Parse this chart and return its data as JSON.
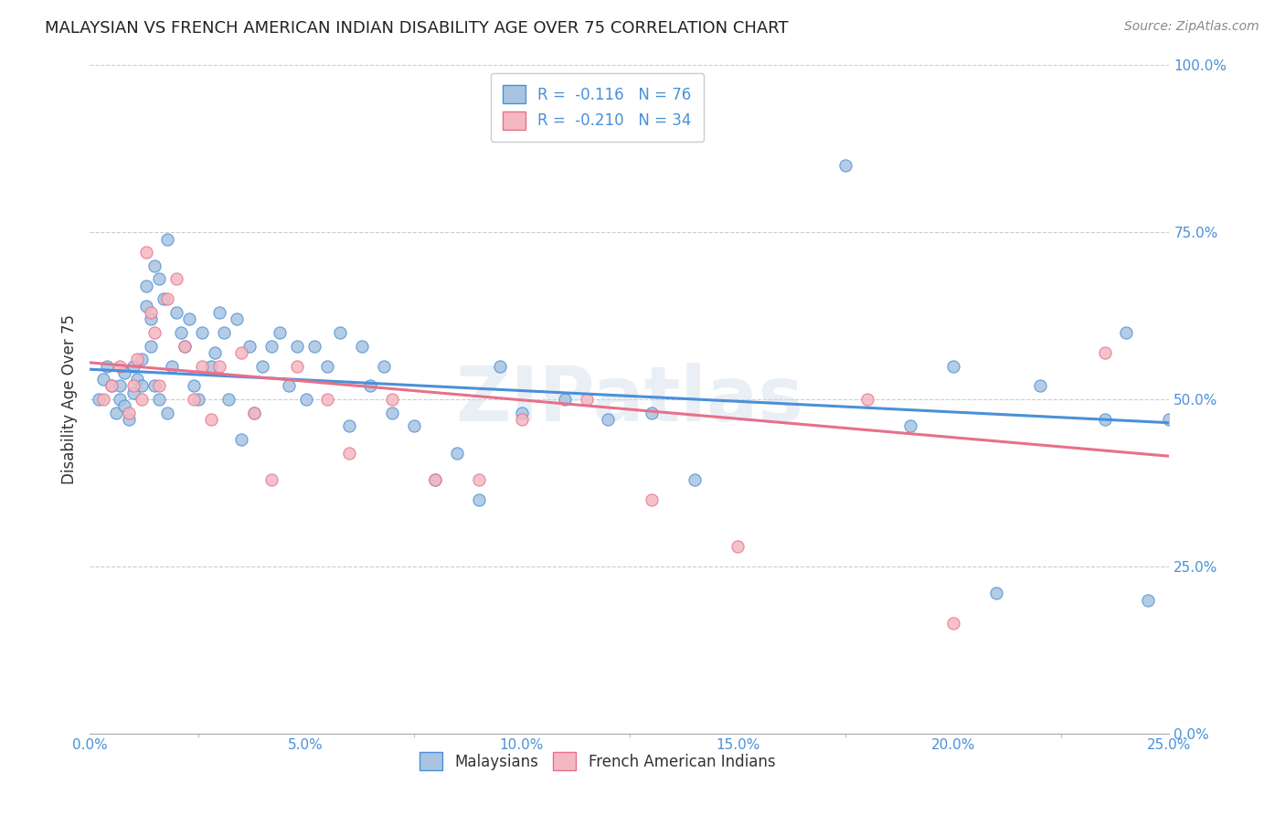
{
  "title": "MALAYSIAN VS FRENCH AMERICAN INDIAN DISABILITY AGE OVER 75 CORRELATION CHART",
  "source": "Source: ZipAtlas.com",
  "ylabel": "Disability Age Over 75",
  "xlim": [
    0,
    0.25
  ],
  "ylim": [
    0,
    1.0
  ],
  "watermark": "ZIPatlas",
  "blue_color": "#4a90d9",
  "pink_color": "#e8708a",
  "blue_fill": "#a8c4e0",
  "pink_fill": "#f4b8c1",
  "blue_line_x": [
    0.0,
    0.25
  ],
  "blue_line_y": [
    0.545,
    0.465
  ],
  "pink_line_x": [
    0.0,
    0.25
  ],
  "pink_line_y": [
    0.555,
    0.415
  ],
  "malaysian_x": [
    0.002,
    0.003,
    0.004,
    0.005,
    0.006,
    0.007,
    0.007,
    0.008,
    0.008,
    0.009,
    0.01,
    0.01,
    0.011,
    0.012,
    0.012,
    0.013,
    0.013,
    0.014,
    0.014,
    0.015,
    0.015,
    0.016,
    0.016,
    0.017,
    0.018,
    0.018,
    0.019,
    0.02,
    0.021,
    0.022,
    0.023,
    0.024,
    0.025,
    0.026,
    0.028,
    0.029,
    0.03,
    0.031,
    0.032,
    0.034,
    0.035,
    0.037,
    0.038,
    0.04,
    0.042,
    0.044,
    0.046,
    0.048,
    0.05,
    0.052,
    0.055,
    0.058,
    0.06,
    0.063,
    0.065,
    0.068,
    0.07,
    0.075,
    0.08,
    0.085,
    0.09,
    0.095,
    0.1,
    0.11,
    0.12,
    0.13,
    0.14,
    0.175,
    0.19,
    0.2,
    0.21,
    0.22,
    0.235,
    0.24,
    0.245,
    0.25
  ],
  "malaysian_y": [
    0.5,
    0.53,
    0.55,
    0.52,
    0.48,
    0.52,
    0.5,
    0.54,
    0.49,
    0.47,
    0.51,
    0.55,
    0.53,
    0.52,
    0.56,
    0.64,
    0.67,
    0.62,
    0.58,
    0.7,
    0.52,
    0.68,
    0.5,
    0.65,
    0.74,
    0.48,
    0.55,
    0.63,
    0.6,
    0.58,
    0.62,
    0.52,
    0.5,
    0.6,
    0.55,
    0.57,
    0.63,
    0.6,
    0.5,
    0.62,
    0.44,
    0.58,
    0.48,
    0.55,
    0.58,
    0.6,
    0.52,
    0.58,
    0.5,
    0.58,
    0.55,
    0.6,
    0.46,
    0.58,
    0.52,
    0.55,
    0.48,
    0.46,
    0.38,
    0.42,
    0.35,
    0.55,
    0.48,
    0.5,
    0.47,
    0.48,
    0.38,
    0.85,
    0.46,
    0.55,
    0.21,
    0.52,
    0.47,
    0.6,
    0.2,
    0.47
  ],
  "french_x": [
    0.003,
    0.005,
    0.007,
    0.009,
    0.01,
    0.011,
    0.012,
    0.013,
    0.014,
    0.015,
    0.016,
    0.018,
    0.02,
    0.022,
    0.024,
    0.026,
    0.028,
    0.03,
    0.035,
    0.038,
    0.042,
    0.048,
    0.055,
    0.06,
    0.07,
    0.08,
    0.09,
    0.1,
    0.115,
    0.13,
    0.15,
    0.18,
    0.2,
    0.235
  ],
  "french_y": [
    0.5,
    0.52,
    0.55,
    0.48,
    0.52,
    0.56,
    0.5,
    0.72,
    0.63,
    0.6,
    0.52,
    0.65,
    0.68,
    0.58,
    0.5,
    0.55,
    0.47,
    0.55,
    0.57,
    0.48,
    0.38,
    0.55,
    0.5,
    0.42,
    0.5,
    0.38,
    0.38,
    0.47,
    0.5,
    0.35,
    0.28,
    0.5,
    0.165,
    0.57
  ]
}
